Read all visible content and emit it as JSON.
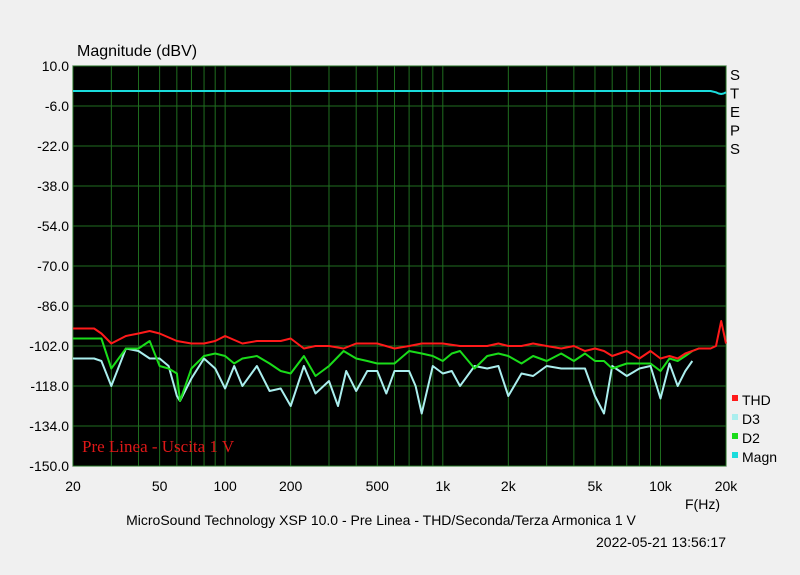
{
  "chart_data": {
    "type": "line",
    "ylabel": "Magnitude (dBV)",
    "xlabel": "F(Hz)",
    "x_scale": "log",
    "xlim": [
      20,
      20000
    ],
    "ylim": [
      -150,
      10
    ],
    "y_ticks": [
      10.0,
      -6.0,
      -22.0,
      -38.0,
      -54.0,
      -70.0,
      -86.0,
      -102.0,
      -118.0,
      -134.0,
      -150.0
    ],
    "y_tick_labels": [
      "10.0",
      "-6.0",
      "-22.0",
      "-38.0",
      "-54.0",
      "-70.0",
      "-86.0",
      "-102.0",
      "-118.0",
      "-134.0",
      "-150.0"
    ],
    "x_ticks": [
      20,
      50,
      100,
      200,
      500,
      1000,
      2000,
      5000,
      10000,
      20000
    ],
    "x_tick_labels": [
      "20",
      "50",
      "100",
      "200",
      "500",
      "1k",
      "2k",
      "5k",
      "10k",
      "20k"
    ],
    "grid": true,
    "background": "#000000",
    "grid_color": "#1f6e1f",
    "steps_label": [
      "S",
      "T",
      "E",
      "P",
      "S"
    ],
    "annotation": "Pre Linea - Uscita 1 V",
    "annotation_color": "#e01818",
    "legend_position": "bottom-right",
    "series": [
      {
        "name": "THD",
        "color": "#ff1a1a",
        "x": [
          20,
          25,
          27,
          30,
          35,
          40,
          45,
          50,
          60,
          70,
          80,
          90,
          100,
          120,
          140,
          160,
          180,
          200,
          230,
          260,
          300,
          350,
          400,
          450,
          500,
          600,
          700,
          800,
          900,
          1000,
          1200,
          1400,
          1600,
          1800,
          2000,
          2300,
          2600,
          3000,
          3500,
          4000,
          4500,
          5000,
          5500,
          6000,
          7000,
          8000,
          9000,
          10000,
          11000,
          12000,
          13000,
          14000,
          15000,
          16000,
          17000,
          18000,
          19000,
          20000
        ],
        "y": [
          -95,
          -95,
          -97,
          -101,
          -98,
          -97,
          -96,
          -97,
          -100,
          -101,
          -101,
          -100,
          -98,
          -101,
          -100,
          -100,
          -100,
          -99,
          -103,
          -102,
          -102,
          -103,
          -101,
          -101,
          -101,
          -103,
          -102,
          -101,
          -101,
          -101,
          -102,
          -102,
          -102,
          -101,
          -102,
          -102,
          -101,
          -102,
          -103,
          -102,
          -104,
          -103,
          -104,
          -106,
          -104,
          -107,
          -104,
          -107,
          -106,
          -107,
          -105,
          -104,
          -103,
          -103,
          -103,
          -102,
          -92,
          -101
        ]
      },
      {
        "name": "D3",
        "color": "#aaeeee",
        "x": [
          20,
          25,
          27,
          30,
          35,
          40,
          45,
          50,
          55,
          60,
          62,
          70,
          80,
          90,
          100,
          110,
          120,
          140,
          160,
          180,
          200,
          230,
          260,
          300,
          330,
          360,
          400,
          450,
          500,
          550,
          600,
          700,
          750,
          800,
          900,
          1000,
          1100,
          1200,
          1400,
          1600,
          1800,
          2000,
          2300,
          2600,
          3000,
          3500,
          4000,
          4500,
          5000,
          5500,
          6000,
          7000,
          8000,
          9000,
          10000,
          11000,
          12000,
          13000,
          14000
        ],
        "y": [
          -107,
          -107,
          -108,
          -118,
          -103,
          -104,
          -107,
          -107,
          -110,
          -122,
          -124,
          -115,
          -107,
          -111,
          -119,
          -110,
          -118,
          -110,
          -120,
          -119,
          -126,
          -110,
          -121,
          -116,
          -126,
          -112,
          -120,
          -112,
          -112,
          -121,
          -112,
          -112,
          -118,
          -129,
          -110,
          -113,
          -112,
          -118,
          -110,
          -111,
          -110,
          -122,
          -113,
          -114,
          -110,
          -111,
          -111,
          -111,
          -122,
          -129,
          -110,
          -114,
          -111,
          -110,
          -123,
          -109,
          -118,
          -112,
          -108
        ]
      },
      {
        "name": "D2",
        "color": "#1adc1a",
        "x": [
          20,
          25,
          27,
          30,
          35,
          40,
          45,
          50,
          55,
          60,
          62,
          70,
          80,
          90,
          100,
          110,
          120,
          140,
          160,
          180,
          200,
          230,
          260,
          300,
          350,
          400,
          450,
          500,
          550,
          600,
          700,
          800,
          900,
          1000,
          1100,
          1200,
          1400,
          1600,
          1800,
          2000,
          2300,
          2600,
          3000,
          3500,
          4000,
          4500,
          5000,
          5500,
          6000,
          7000,
          8000,
          9000,
          10000,
          11000,
          12000,
          13000,
          14000,
          15000,
          16000
        ],
        "y": [
          -99,
          -99,
          -99,
          -111,
          -103,
          -103,
          -100,
          -110,
          -111,
          -113,
          -124,
          -111,
          -106,
          -105,
          -106,
          -109,
          -107,
          -106,
          -109,
          -112,
          -113,
          -106,
          -114,
          -110,
          -104,
          -107,
          -108,
          -109,
          -109,
          -109,
          -104,
          -105,
          -106,
          -108,
          -105,
          -104,
          -111,
          -106,
          -105,
          -106,
          -109,
          -106,
          -108,
          -105,
          -108,
          -105,
          -108,
          -108,
          -111,
          -109,
          -109,
          -109,
          -112,
          -107,
          -108,
          -106,
          -104,
          -103,
          -103
        ]
      },
      {
        "name": "Magn",
        "color": "#1adcdc",
        "x": [
          20,
          100,
          1000,
          10000,
          16000,
          17000,
          18000,
          18500,
          19000,
          19500,
          20000
        ],
        "y": [
          0,
          0,
          0,
          0,
          0,
          0,
          -0.5,
          -1,
          -1.2,
          -1,
          -0.5
        ]
      }
    ],
    "legend": [
      "THD",
      "D3",
      "D2",
      "Magn"
    ]
  },
  "footer": {
    "title": "MicroSound Technology XSP 10.0 - Pre Linea - THD/Seconda/Terza Armonica 1 V",
    "timestamp": "2022-05-21 13:56:17"
  }
}
